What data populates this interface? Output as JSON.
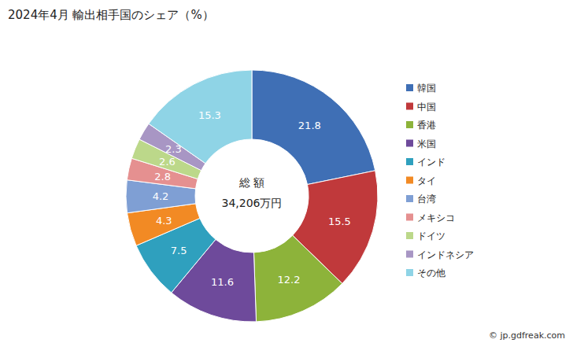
{
  "chart_data": {
    "type": "pie",
    "title": "2024年4月 輸出相手国のシェア（%）",
    "categories": [
      "韓国",
      "中国",
      "香港",
      "米国",
      "インド",
      "タイ",
      "台湾",
      "メキシコ",
      "ドイツ",
      "インドネシア",
      "その他"
    ],
    "values": [
      21.8,
      15.5,
      12.2,
      11.6,
      7.5,
      4.3,
      4.2,
      2.8,
      2.6,
      2.3,
      15.3
    ],
    "colors": [
      "#3f6fb5",
      "#c0393b",
      "#8db33a",
      "#6e4a9b",
      "#2fa0be",
      "#f28a24",
      "#7f9fd4",
      "#e59090",
      "#bcd88a",
      "#a896c4",
      "#8fd4e6"
    ],
    "data_labels": true,
    "legend": "right",
    "annotations": [
      "総 額",
      "34,206万円",
      "© jp.gdfreak.com"
    ]
  }
}
